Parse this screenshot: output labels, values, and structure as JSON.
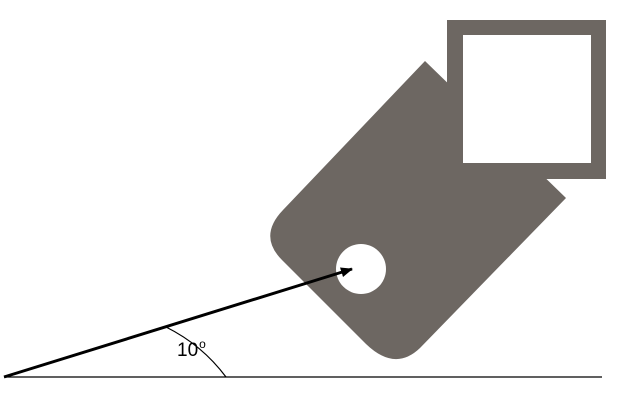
{
  "diagram": {
    "angle": {
      "value": "10",
      "unit_symbol": "o"
    },
    "colors": {
      "body": "#6d6762",
      "frame": "#6d6762",
      "frame_inner": "#ffffff",
      "hole": "#ffffff",
      "line": "#000000",
      "background": "#ffffff"
    },
    "icons": {
      "arrowhead": "arrowhead-icon"
    }
  }
}
